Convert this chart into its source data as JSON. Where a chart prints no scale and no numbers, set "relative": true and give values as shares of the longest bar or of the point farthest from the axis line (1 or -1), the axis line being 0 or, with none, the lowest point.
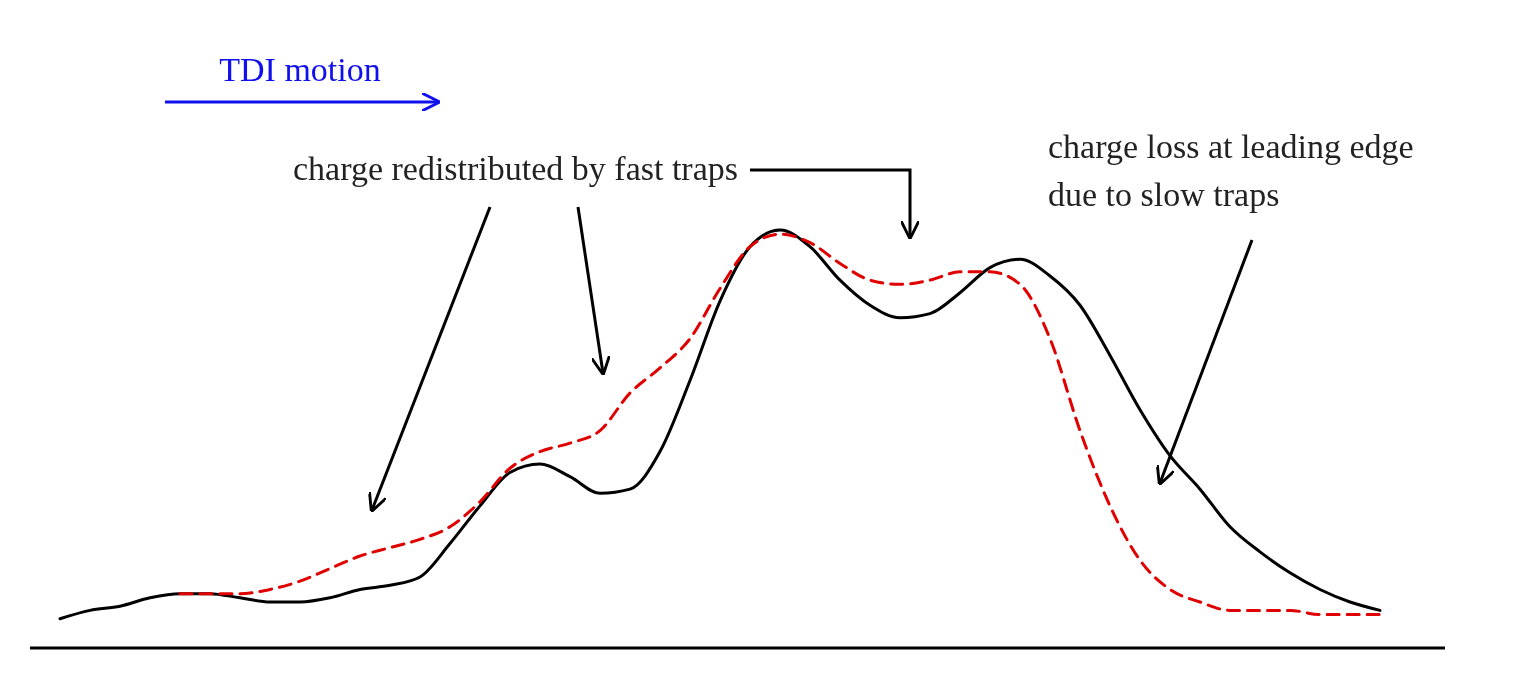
{
  "chart_data": {
    "type": "line",
    "relative": true,
    "categories": [
      null,
      null,
      null,
      null,
      null,
      null,
      null,
      null,
      null,
      null,
      null,
      null,
      null,
      null,
      null,
      null,
      null,
      null,
      null,
      null,
      null,
      null,
      null,
      null,
      null,
      null,
      null,
      null,
      null,
      null,
      null,
      null,
      null,
      null,
      null,
      null,
      null,
      null,
      null,
      null,
      null,
      null,
      null,
      null,
      null
    ],
    "series": [
      {
        "color": "#000000",
        "line_style": "solid",
        "values": [
          0.07,
          0.09,
          0.1,
          0.12,
          0.13,
          0.13,
          0.12,
          0.11,
          0.11,
          0.12,
          0.14,
          0.15,
          0.17,
          0.25,
          0.34,
          0.42,
          0.44,
          0.41,
          0.37,
          0.38,
          0.47,
          0.64,
          0.83,
          0.96,
          1,
          0.96,
          0.88,
          0.82,
          0.79,
          0.8,
          0.85,
          0.91,
          0.93,
          0.89,
          0.82,
          0.7,
          0.57,
          0.46,
          0.38,
          0.29,
          0.23,
          0.18,
          0.14,
          0.11,
          0.09
        ]
      },
      {
        "color": "#e00000",
        "line_style": "dashed",
        "values": [
          null,
          null,
          null,
          null,
          0.13,
          0.13,
          0.13,
          0.14,
          0.16,
          0.19,
          0.22,
          0.24,
          0.26,
          0.29,
          0.35,
          0.43,
          0.47,
          0.49,
          0.52,
          0.61,
          0.67,
          0.74,
          0.86,
          0.96,
          0.99,
          0.97,
          0.92,
          0.88,
          0.87,
          0.88,
          0.9,
          0.9,
          0.87,
          0.74,
          0.52,
          0.34,
          0.21,
          0.14,
          0.11,
          0.09,
          0.09,
          0.09,
          0.08,
          0.08,
          0.08
        ]
      }
    ],
    "annotations": [
      "TDI motion",
      "charge redistributed by fast traps",
      "charge loss at leading edge due to slow traps"
    ]
  }
}
